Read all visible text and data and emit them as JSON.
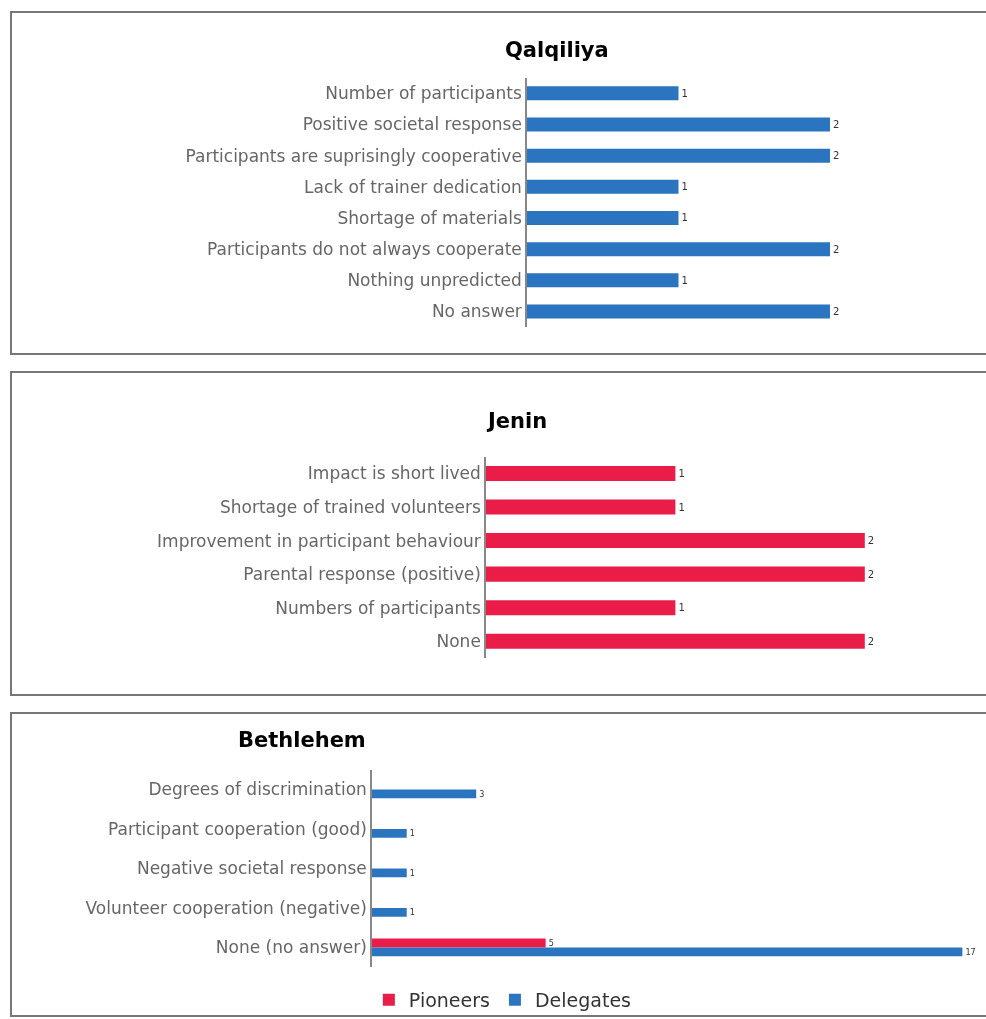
{
  "chart_data": [
    {
      "type": "bar",
      "orientation": "horizontal",
      "title": "Qalqiliya",
      "categories": [
        "Number of participants",
        "Positive societal response",
        "Participants are suprisingly cooperative",
        "Lack of trainer dedication",
        "Shortage of materials",
        "Participants do not always cooperate",
        "Nothing unpredicted",
        "No answer"
      ],
      "series": [
        {
          "color": "#2a74c0",
          "values": [
            1,
            2,
            2,
            1,
            1,
            2,
            1,
            2
          ]
        }
      ],
      "data_labels": true,
      "tick_labels": "y"
    },
    {
      "type": "bar",
      "orientation": "horizontal",
      "title": "Jenin",
      "categories": [
        "Impact is short lived",
        "Shortage of trained volunteers",
        "Improvement in participant behaviour",
        "Parental response (positive)",
        "Numbers of participants",
        "None"
      ],
      "series": [
        {
          "color": "#e91d48",
          "values": [
            1,
            1,
            2,
            2,
            1,
            2
          ]
        }
      ],
      "data_labels": true,
      "tick_labels": "y"
    },
    {
      "type": "bar",
      "orientation": "horizontal",
      "title": "Bethlehem",
      "categories": [
        "Degrees of discrimination",
        "Participant cooperation (good)",
        "Negative societal response",
        "Volunteer cooperation (negative)",
        "None (no answer)"
      ],
      "series": [
        {
          "name": "Pioneers",
          "color": "#e91d48",
          "values": [
            null,
            null,
            null,
            null,
            5
          ]
        },
        {
          "name": "Delegates",
          "color": "#2a74c0",
          "values": [
            3,
            1,
            1,
            1,
            17
          ]
        }
      ],
      "data_labels": true,
      "tick_labels": "y",
      "legend": "bottom"
    }
  ]
}
